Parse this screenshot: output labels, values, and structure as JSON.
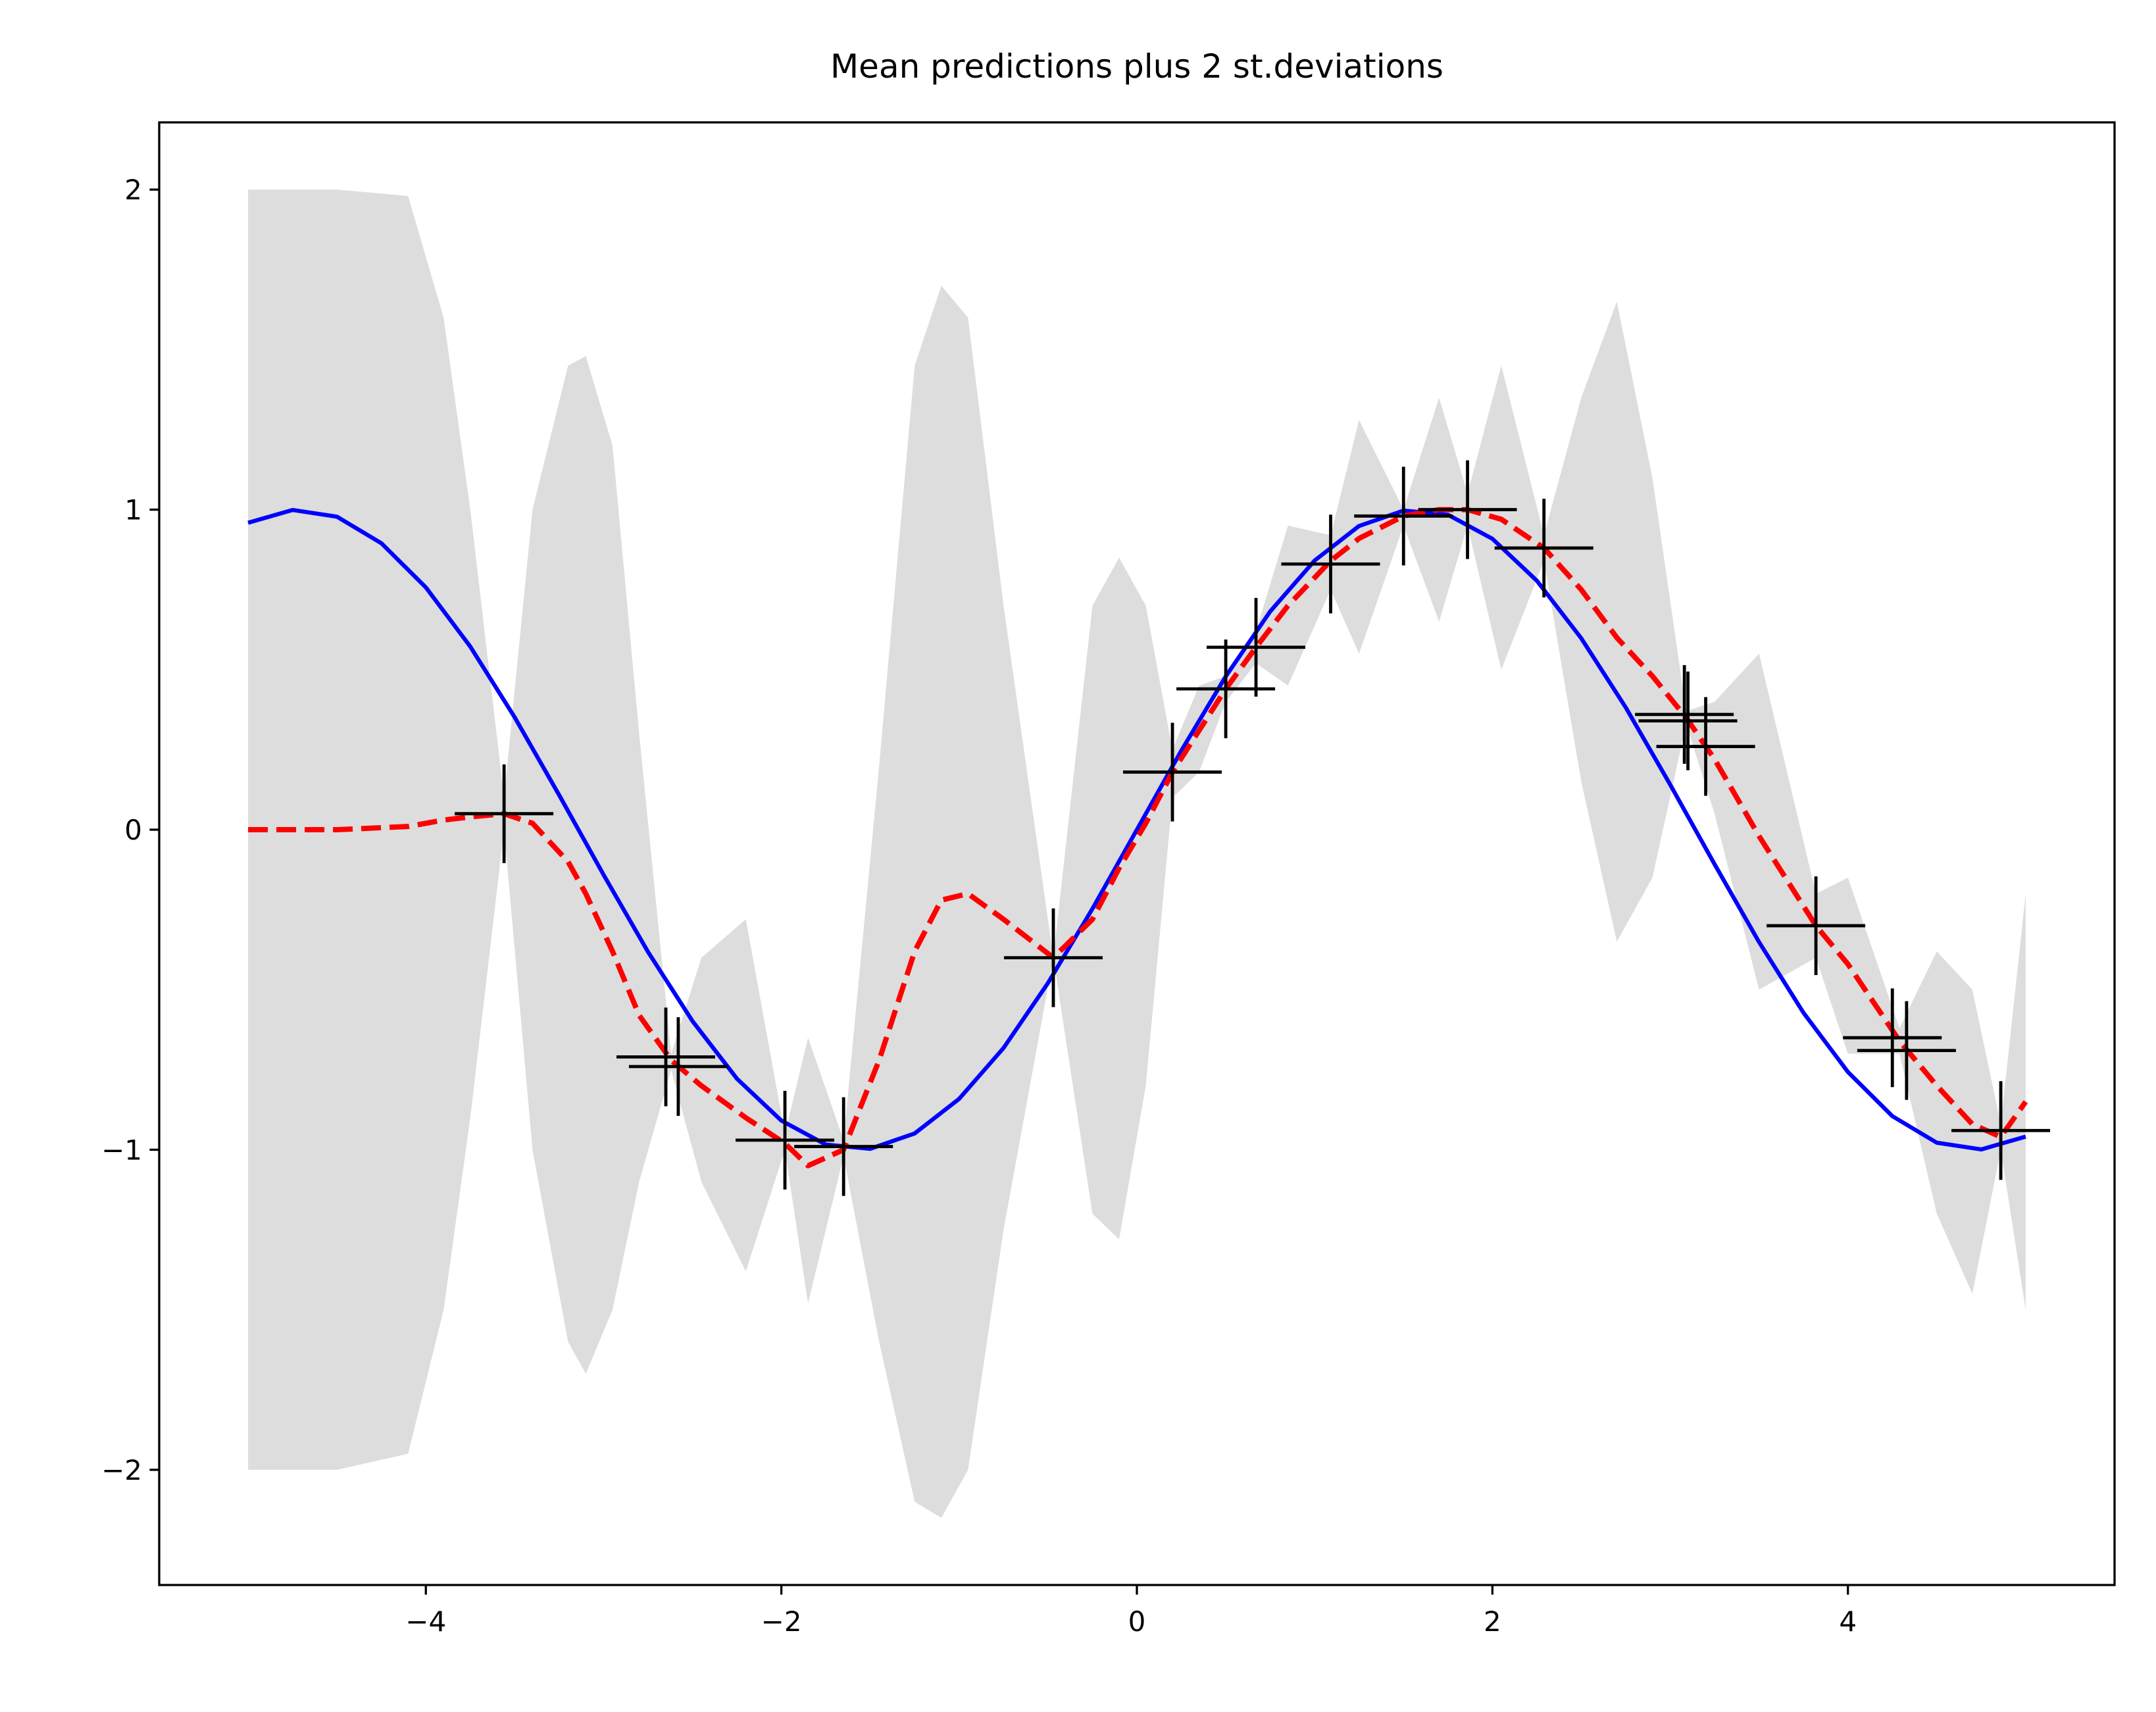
{
  "chart_data": {
    "type": "line",
    "title": "Mean predictions plus 2 st.deviations",
    "xlim": [
      -5.5,
      5.5
    ],
    "ylim": [
      -2.36,
      2.21
    ],
    "xticks": [
      {
        "value": -4,
        "label": "−4"
      },
      {
        "value": -2,
        "label": "−2"
      },
      0,
      2,
      4
    ],
    "yticks": [
      {
        "value": -2,
        "label": "−2"
      },
      {
        "value": -1,
        "label": "−1"
      },
      0,
      1,
      2
    ],
    "grid": false,
    "series": [
      {
        "type": "fill_between",
        "color": "#dddddd",
        "x": [
          -5,
          -4.5,
          -4.1,
          -3.9,
          -3.75,
          -3.56,
          -3.4,
          -3.2,
          -3.1,
          -2.95,
          -2.8,
          -2.62,
          -2.45,
          -2.2,
          -1.98,
          -1.85,
          -1.65,
          -1.45,
          -1.25,
          -1.1,
          -0.95,
          -0.75,
          -0.47,
          -0.25,
          -0.1,
          0.05,
          0.2,
          0.35,
          0.5,
          0.67,
          0.85,
          1.09,
          1.25,
          1.5,
          1.7,
          1.86,
          2.05,
          2.29,
          2.5,
          2.7,
          2.9,
          3.09,
          3.25,
          3.5,
          3.82,
          4.0,
          4.29,
          4.5,
          4.7,
          4.86,
          5.0
        ],
        "upper": [
          2.0,
          2.0,
          1.98,
          1.6,
          1.0,
          0.1,
          1.0,
          1.45,
          1.48,
          1.2,
          0.3,
          -0.7,
          -0.4,
          -0.28,
          -0.95,
          -0.65,
          -0.97,
          0.2,
          1.45,
          1.7,
          1.6,
          0.7,
          -0.4,
          0.7,
          0.85,
          0.7,
          0.25,
          0.45,
          0.48,
          0.62,
          0.95,
          0.92,
          1.28,
          1.0,
          1.35,
          1.05,
          1.45,
          0.92,
          1.35,
          1.65,
          1.1,
          0.37,
          0.4,
          0.55,
          -0.2,
          -0.15,
          -0.62,
          -0.38,
          -0.5,
          -0.92,
          -0.2
        ],
        "lower": [
          -2.0,
          -2.0,
          -1.95,
          -1.5,
          -0.9,
          0.0,
          -1.0,
          -1.6,
          -1.7,
          -1.5,
          -1.1,
          -0.75,
          -1.1,
          -1.38,
          -1.0,
          -1.48,
          -1.02,
          -1.6,
          -2.1,
          -2.15,
          -2.0,
          -1.25,
          -0.4,
          -1.2,
          -1.28,
          -0.8,
          0.1,
          0.18,
          0.4,
          0.52,
          0.45,
          0.75,
          0.55,
          0.95,
          0.65,
          0.95,
          0.5,
          0.84,
          0.15,
          -0.35,
          -0.15,
          0.33,
          0.05,
          -0.5,
          -0.4,
          -0.7,
          -0.7,
          -1.2,
          -1.45,
          -1.0,
          -1.5
        ]
      },
      {
        "type": "line",
        "color": "#0000ff",
        "dashed": false,
        "x": [
          -5,
          -4.75,
          -4.5,
          -4.25,
          -4,
          -3.75,
          -3.5,
          -3.25,
          -3,
          -2.75,
          -2.5,
          -2.25,
          -2,
          -1.75,
          -1.5,
          -1.25,
          -1,
          -0.75,
          -0.5,
          -0.25,
          0,
          0.25,
          0.5,
          0.75,
          1,
          1.25,
          1.5,
          1.75,
          2,
          2.25,
          2.5,
          2.75,
          3,
          3.25,
          3.5,
          3.75,
          4,
          4.25,
          4.5,
          4.75,
          5
        ],
        "values": [
          0.959,
          0.999,
          0.978,
          0.895,
          0.757,
          0.572,
          0.351,
          0.108,
          -0.141,
          -0.382,
          -0.598,
          -0.778,
          -0.909,
          -0.984,
          -0.997,
          -0.949,
          -0.841,
          -0.682,
          -0.479,
          -0.247,
          0,
          0.247,
          0.479,
          0.682,
          0.841,
          0.949,
          0.997,
          0.984,
          0.909,
          0.778,
          0.598,
          0.382,
          0.141,
          -0.108,
          -0.351,
          -0.572,
          -0.757,
          -0.895,
          -0.978,
          -0.999,
          -0.959
        ]
      },
      {
        "type": "line",
        "color": "#ff0000",
        "dashed": true,
        "x": [
          -5,
          -4.5,
          -4.1,
          -3.9,
          -3.75,
          -3.56,
          -3.4,
          -3.2,
          -3.1,
          -2.95,
          -2.8,
          -2.62,
          -2.45,
          -2.2,
          -1.98,
          -1.85,
          -1.65,
          -1.45,
          -1.25,
          -1.1,
          -0.95,
          -0.75,
          -0.47,
          -0.25,
          -0.1,
          0.05,
          0.2,
          0.35,
          0.5,
          0.67,
          0.85,
          1.09,
          1.25,
          1.5,
          1.7,
          1.86,
          2.05,
          2.29,
          2.5,
          2.7,
          2.9,
          3.09,
          3.25,
          3.5,
          3.82,
          4.0,
          4.29,
          4.5,
          4.7,
          4.86,
          5.0
        ],
        "values": [
          0,
          0,
          0.01,
          0.03,
          0.04,
          0.05,
          0.02,
          -0.1,
          -0.2,
          -0.38,
          -0.58,
          -0.72,
          -0.8,
          -0.9,
          -0.98,
          -1.05,
          -1.0,
          -0.72,
          -0.38,
          -0.22,
          -0.2,
          -0.28,
          -0.4,
          -0.28,
          -0.12,
          0.02,
          0.18,
          0.31,
          0.44,
          0.57,
          0.7,
          0.84,
          0.91,
          0.98,
          1.0,
          1.0,
          0.97,
          0.88,
          0.75,
          0.6,
          0.48,
          0.35,
          0.22,
          -0.02,
          -0.3,
          -0.42,
          -0.66,
          -0.8,
          -0.92,
          -0.96,
          -0.85
        ]
      },
      {
        "type": "scatter",
        "marker": "+",
        "color": "#000000",
        "x": [
          -3.56,
          -2.65,
          -2.58,
          -1.98,
          -1.65,
          -0.47,
          0.2,
          0.5,
          0.67,
          1.09,
          1.5,
          1.86,
          2.29,
          3.08,
          3.1,
          3.2,
          3.82,
          4.25,
          4.33,
          4.86
        ],
        "values": [
          0.05,
          -0.71,
          -0.74,
          -0.97,
          -0.99,
          -0.4,
          0.18,
          0.44,
          0.57,
          0.83,
          0.98,
          1.0,
          0.88,
          0.36,
          0.34,
          0.26,
          -0.3,
          -0.65,
          -0.69,
          -0.94
        ]
      }
    ]
  }
}
